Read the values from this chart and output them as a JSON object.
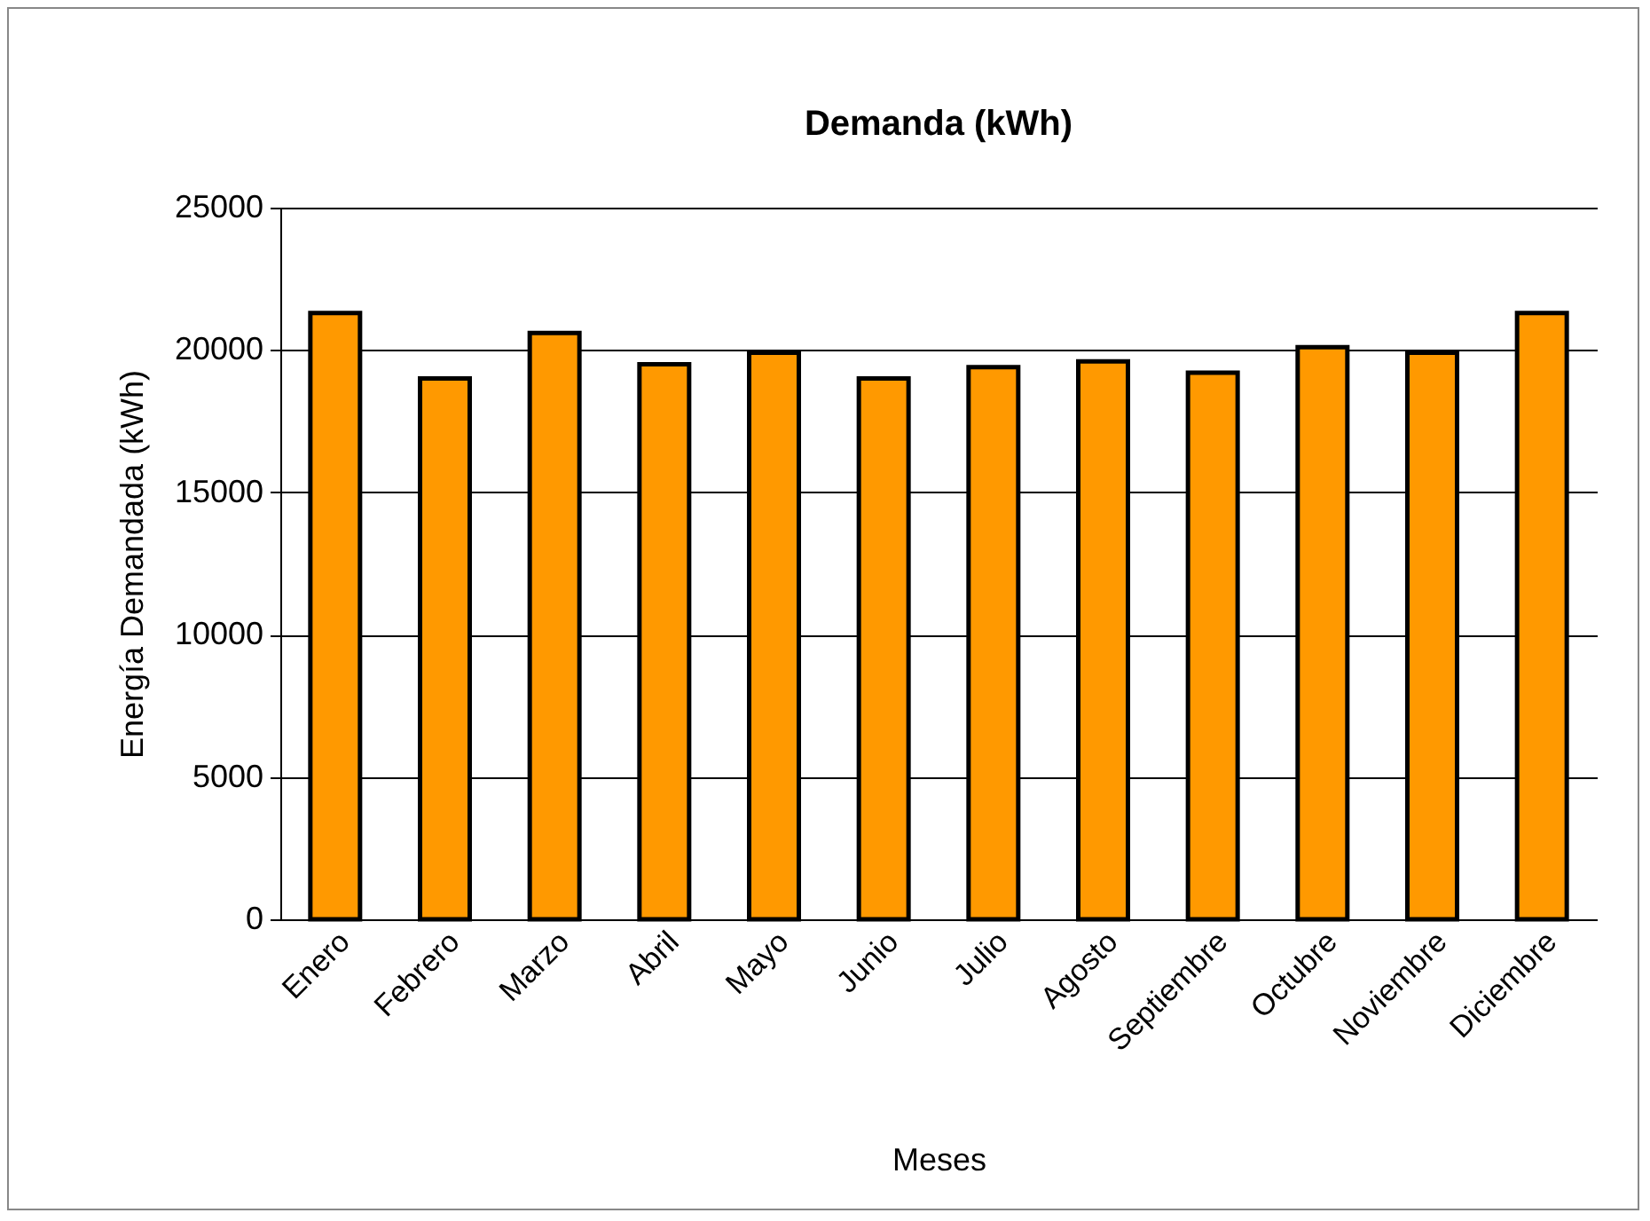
{
  "chart_data": {
    "type": "bar",
    "title": "Demanda (kWh)",
    "xlabel": "Meses",
    "ylabel": "Energía Demandada (kWh)",
    "categories": [
      "Enero",
      "Febrero",
      "Marzo",
      "Abril",
      "Mayo",
      "Junio",
      "Julio",
      "Agosto",
      "Septiembre",
      "Octubre",
      "Noviembre",
      "Diciembre"
    ],
    "values": [
      21300,
      19000,
      20600,
      19500,
      19900,
      19000,
      19400,
      19600,
      19200,
      20100,
      19900,
      21300
    ],
    "color": "#ff9900",
    "ylim": [
      0,
      25000
    ],
    "yticks": [
      0,
      5000,
      10000,
      15000,
      20000,
      25000
    ],
    "grid": "y"
  }
}
